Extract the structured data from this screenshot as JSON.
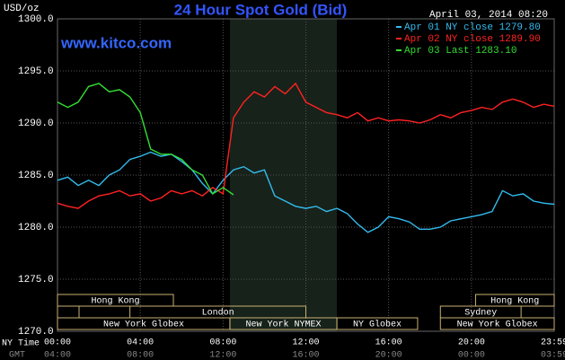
{
  "chart_data": {
    "type": "line",
    "title": "24 Hour Spot Gold (Bid)",
    "y_label": "USD/oz",
    "watermark": "www.kitco.com",
    "timestamp": "April 03, 2014 08:20",
    "x_row_label": "NY Time",
    "x2_row_label": "GMT",
    "x": [
      0,
      0.5,
      1,
      1.5,
      2,
      2.5,
      3,
      3.5,
      4,
      4.5,
      5,
      5.5,
      6,
      6.5,
      7,
      7.5,
      8,
      8.5,
      9,
      9.5,
      10,
      10.5,
      11,
      11.5,
      12,
      12.5,
      13,
      13.5,
      14,
      14.5,
      15,
      15.5,
      16,
      16.5,
      17,
      17.5,
      18,
      18.5,
      19,
      19.5,
      20,
      20.5,
      21,
      21.5,
      22,
      22.5,
      23,
      23.5,
      24
    ],
    "series": [
      {
        "name": "Apr 01 NY close 1279.80",
        "color": "#33bbee",
        "values": [
          1284.5,
          1284.8,
          1284,
          1284.5,
          1284,
          1285,
          1285.5,
          1286.5,
          1286.8,
          1287.2,
          1286.8,
          1287,
          1286.3,
          1285.5,
          1284.2,
          1283.2,
          1284.5,
          1285.5,
          1285.8,
          1285.2,
          1285.5,
          1283,
          1282.5,
          1282,
          1281.8,
          1282,
          1281.5,
          1281.8,
          1281.3,
          1280.3,
          1279.5,
          1280,
          1281,
          1280.8,
          1280.5,
          1279.8,
          1279.8,
          1280,
          1280.6,
          1280.8,
          1281,
          1281.2,
          1281.5,
          1283.5,
          1283,
          1283.2,
          1282.5,
          1282.3,
          1282.2
        ]
      },
      {
        "name": "Apr 02 NY close 1289.90",
        "color": "#ff2222",
        "values": [
          1282.3,
          1282,
          1281.8,
          1282.5,
          1283,
          1283.2,
          1283.5,
          1283,
          1283.2,
          1282.5,
          1282.8,
          1283.5,
          1283.2,
          1283.5,
          1283,
          1283.8,
          1283.2,
          1290.5,
          1292,
          1293,
          1292.5,
          1293.5,
          1292.8,
          1293.8,
          1292,
          1291.5,
          1291,
          1290.8,
          1290.5,
          1291,
          1290.2,
          1290.5,
          1290.2,
          1290.3,
          1290.2,
          1290,
          1290.3,
          1290.8,
          1290.5,
          1291,
          1291.2,
          1291.5,
          1291.3,
          1292,
          1292.3,
          1292,
          1291.5,
          1291.8,
          1291.6
        ]
      },
      {
        "name": "Apr 03 Last 1283.10",
        "color": "#33dd33",
        "values": [
          1292,
          1291.5,
          1292,
          1293.5,
          1293.8,
          1293,
          1293.2,
          1292.5,
          1291,
          1287.5,
          1287,
          1287,
          1286.5,
          1285.5,
          1285,
          1283.2,
          1283.8,
          1283.1,
          null,
          null,
          null,
          null,
          null,
          null,
          null,
          null,
          null,
          null,
          null,
          null,
          null,
          null,
          null,
          null,
          null,
          null,
          null,
          null,
          null,
          null,
          null,
          null,
          null,
          null,
          null,
          null,
          null,
          null,
          null
        ]
      }
    ],
    "xlim": [
      0,
      24
    ],
    "xticks": [
      {
        "value": 0,
        "label": "00:00"
      },
      {
        "value": 4,
        "label": "04:00"
      },
      {
        "value": 8,
        "label": "08:00"
      },
      {
        "value": 12,
        "label": "12:00"
      },
      {
        "value": 16,
        "label": "16:00"
      },
      {
        "value": 20,
        "label": "20:00"
      },
      {
        "value": 24,
        "label": "23:59"
      }
    ],
    "x2_labels": [
      "04:00",
      "08:00",
      "12:00",
      "16:00",
      "20:00",
      "00:00",
      "03:59"
    ],
    "ylim": [
      1270,
      1300
    ],
    "yticks": [
      {
        "value": 1270,
        "label": "1270.0"
      },
      {
        "value": 1275,
        "label": "1275.0"
      },
      {
        "value": 1280,
        "label": "1280.0"
      },
      {
        "value": 1285,
        "label": "1285.0"
      },
      {
        "value": 1290,
        "label": "1290.0"
      },
      {
        "value": 1295,
        "label": "1295.0"
      },
      {
        "value": 1300,
        "label": "1300.0"
      }
    ],
    "highlight": [
      8.33,
      13.5
    ],
    "sessions": [
      {
        "label": "Hong Kong",
        "start": 0,
        "end": 5.6,
        "row": 0
      },
      {
        "label": "Hong Kong",
        "start": 20.2,
        "end": 24,
        "row": 0
      },
      {
        "label": "London",
        "start": 3.5,
        "end": 12,
        "row": 1
      },
      {
        "label": "Sydney",
        "start": 18.5,
        "end": 22.4,
        "row": 1
      },
      {
        "label": "New York Globex",
        "start": 0,
        "end": 8.33,
        "row": 2
      },
      {
        "label": "New York NYMEX",
        "start": 8.33,
        "end": 13.5,
        "row": 2
      },
      {
        "label": "NY Globex",
        "start": 13.5,
        "end": 17.4,
        "row": 2
      },
      {
        "label": "New York Globex",
        "start": 18.5,
        "end": 24,
        "row": 2
      }
    ],
    "grid": true
  }
}
